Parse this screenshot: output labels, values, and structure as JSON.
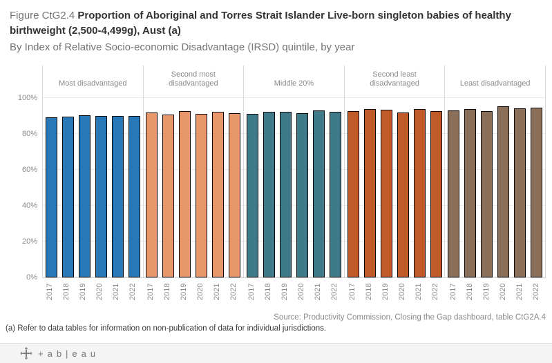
{
  "title": {
    "prefix": "Figure CtG2.4 ",
    "bold": "Proportion of Aboriginal and Torres Strait Islander Live-born singleton babies of healthy birthweight (2,500-4,499g), Aust (a)",
    "subtitle": "By Index of Relative Socio-economic Disadvantage (IRSD) quintile, by year"
  },
  "chart_data": {
    "type": "bar",
    "title": "Proportion of Aboriginal and Torres Strait Islander Live-born singleton babies of healthy birthweight (2,500-4,499g), Aust, by IRSD quintile, by year",
    "categories": [
      "2017",
      "2018",
      "2019",
      "2020",
      "2021",
      "2022"
    ],
    "series": [
      {
        "name": "Most disadvantaged",
        "color": "#2878b8",
        "values": [
          89.4,
          89.6,
          90.5,
          90.1,
          90.1,
          89.9
        ]
      },
      {
        "name": "Second most disadvantaged",
        "color": "#e8976a",
        "values": [
          91.8,
          90.8,
          92.6,
          91.2,
          92.4,
          91.4
        ]
      },
      {
        "name": "Middle 20%",
        "color": "#3e7a88",
        "values": [
          91.2,
          92.2,
          92.4,
          91.5,
          92.9,
          92.2
        ]
      },
      {
        "name": "Second least disadvantaged",
        "color": "#c05a28",
        "values": [
          92.7,
          93.7,
          93.5,
          91.9,
          93.7,
          92.7
        ]
      },
      {
        "name": "Least disadvantaged",
        "color": "#8b6e57",
        "values": [
          93.1,
          94.0,
          92.7,
          95.3,
          94.1,
          94.6
        ]
      }
    ],
    "ylim": [
      0,
      100
    ],
    "yticks": [
      0,
      20,
      40,
      60,
      80,
      100
    ],
    "ytick_suffix": "%",
    "grid": true,
    "bar_border_color": "#0a0a0a",
    "legend_position": "none"
  },
  "footer": {
    "source": "Source: Productivity Commission, Closing the Gap dashboard, table CtG2A.4",
    "note": "(a) Refer to  data tables for information on non-publication of data for individual jurisdictions."
  },
  "toolbar": {
    "logo_text": "+ab|eau"
  }
}
